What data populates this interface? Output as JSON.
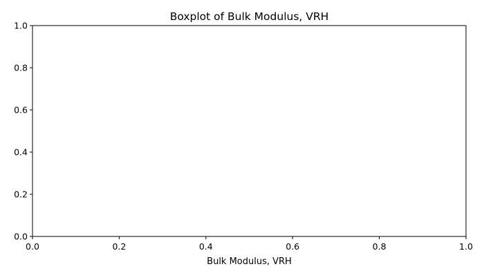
{
  "chart_data": {
    "type": "box",
    "title": "Boxplot of Bulk Modulus, VRH",
    "xlabel": "Bulk Modulus, VRH",
    "ylabel": "",
    "xlim": [
      0.0,
      1.0
    ],
    "ylim": [
      0.0,
      1.0
    ],
    "xticks": [
      0.0,
      0.2,
      0.4,
      0.6,
      0.8,
      1.0
    ],
    "yticks": [
      0.0,
      0.2,
      0.4,
      0.6,
      0.8,
      1.0
    ],
    "xtick_labels": [
      "0.0",
      "0.2",
      "0.4",
      "0.6",
      "0.8",
      "1.0"
    ],
    "ytick_labels": [
      "0.0",
      "0.2",
      "0.4",
      "0.6",
      "0.8",
      "1.0"
    ],
    "series": [],
    "grid": false,
    "colors": {
      "axes": "#000000",
      "background": "#ffffff"
    }
  }
}
